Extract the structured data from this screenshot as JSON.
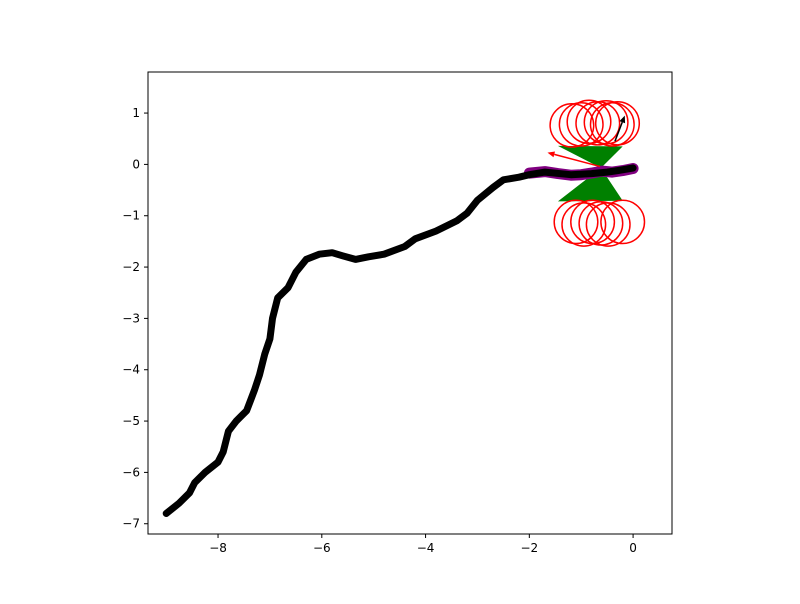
{
  "chart_data": {
    "type": "line",
    "title": "",
    "xlabel": "",
    "ylabel": "",
    "xlim": [
      -9.35,
      0.75
    ],
    "ylim": [
      -7.2,
      1.8
    ],
    "grid": false,
    "legend": "none",
    "xticks": [
      {
        "value": -8,
        "label": "−8"
      },
      {
        "value": -6,
        "label": "−6"
      },
      {
        "value": -4,
        "label": "−4"
      },
      {
        "value": -2,
        "label": "−2"
      },
      {
        "value": 0,
        "label": "0"
      }
    ],
    "yticks": [
      {
        "value": 1,
        "label": "1"
      },
      {
        "value": 0,
        "label": "0"
      },
      {
        "value": -1,
        "label": "−1"
      },
      {
        "value": -2,
        "label": "−2"
      },
      {
        "value": -3,
        "label": "−3"
      },
      {
        "value": -4,
        "label": "−4"
      },
      {
        "value": -5,
        "label": "−5"
      },
      {
        "value": -6,
        "label": "−6"
      },
      {
        "value": -7,
        "label": "−7"
      }
    ],
    "trajectory": {
      "color": "#000000",
      "x": [
        -9.0,
        -8.75,
        -8.55,
        -8.45,
        -8.25,
        -8.0,
        -7.9,
        -7.8,
        -7.65,
        -7.55,
        -7.45,
        -7.3,
        -7.2,
        -7.1,
        -7.0,
        -6.95,
        -6.85,
        -6.65,
        -6.5,
        -6.3,
        -6.05,
        -5.8,
        -5.6,
        -5.35,
        -5.1,
        -4.8,
        -4.4,
        -4.2,
        -3.8,
        -3.4,
        -3.2,
        -3.0,
        -2.7,
        -2.5,
        -2.2,
        -2.0,
        -1.7,
        -1.2,
        -0.8,
        -0.5,
        -0.3,
        0.0
      ],
      "y": [
        -6.8,
        -6.6,
        -6.4,
        -6.2,
        -6.0,
        -5.8,
        -5.6,
        -5.2,
        -5.0,
        -4.9,
        -4.8,
        -4.4,
        -4.1,
        -3.7,
        -3.4,
        -3.0,
        -2.6,
        -2.4,
        -2.1,
        -1.85,
        -1.75,
        -1.72,
        -1.78,
        -1.85,
        -1.8,
        -1.75,
        -1.6,
        -1.45,
        -1.3,
        -1.1,
        -0.95,
        -0.7,
        -0.45,
        -0.3,
        -0.25,
        -0.2,
        -0.15,
        -0.2,
        -0.18,
        -0.15,
        -0.12,
        -0.07
      ]
    },
    "predicted_path": {
      "color": "#800080",
      "x": [
        -2.0,
        -1.7,
        -1.45,
        -1.2,
        -1.0,
        -0.8,
        -0.6,
        -0.4,
        -0.2,
        0.0
      ],
      "y": [
        -0.17,
        -0.14,
        -0.18,
        -0.21,
        -0.2,
        -0.17,
        -0.13,
        -0.15,
        -0.12,
        -0.08
      ]
    },
    "circles": {
      "color": "#ff0000",
      "radius": 0.42,
      "centers": [
        [
          -1.18,
          0.76
        ],
        [
          -1.0,
          0.78
        ],
        [
          -0.85,
          0.83
        ],
        [
          -0.68,
          0.8
        ],
        [
          -0.52,
          0.82
        ],
        [
          -0.4,
          0.78
        ],
        [
          -0.3,
          0.8
        ],
        [
          -1.1,
          -1.12
        ],
        [
          -0.95,
          -1.17
        ],
        [
          -0.78,
          -1.12
        ],
        [
          -0.62,
          -1.15
        ],
        [
          -0.48,
          -1.17
        ],
        [
          -0.2,
          -1.12
        ]
      ]
    },
    "cone": {
      "color": "#008000",
      "apex": [
        -0.62,
        -0.07
      ],
      "upper": [
        [
          -1.45,
          0.36
        ],
        [
          -0.2,
          0.35
        ]
      ],
      "lower": [
        [
          -1.45,
          -0.72
        ],
        [
          -0.2,
          -0.71
        ]
      ]
    },
    "arrows": [
      {
        "color": "#000000",
        "from": [
          -0.35,
          0.45
        ],
        "to": [
          -0.16,
          0.95
        ]
      },
      {
        "color": "#ff0000",
        "from": [
          -0.64,
          -0.04
        ],
        "to": [
          -1.65,
          0.23
        ]
      }
    ]
  }
}
